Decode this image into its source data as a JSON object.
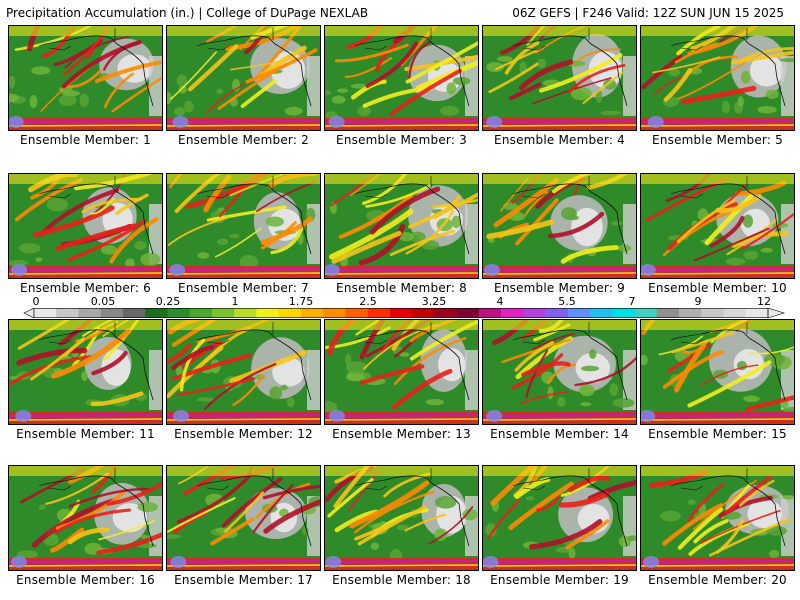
{
  "header": {
    "left": "Precipitation Accumulation (in.) | College of DuPage NEXLAB",
    "right": "06Z GEFS | F246 Valid: 12Z SUN JUN 15 2025"
  },
  "panels": [
    {
      "label": "Ensemble Member: 1"
    },
    {
      "label": "Ensemble Member: 2"
    },
    {
      "label": "Ensemble Member: 3"
    },
    {
      "label": "Ensemble Member: 4"
    },
    {
      "label": "Ensemble Member: 5"
    },
    {
      "label": "Ensemble Member: 6"
    },
    {
      "label": "Ensemble Member: 7"
    },
    {
      "label": "Ensemble Member: 8"
    },
    {
      "label": "Ensemble Member: 9"
    },
    {
      "label": "Ensemble Member: 10"
    },
    {
      "label": "Ensemble Member: 11"
    },
    {
      "label": "Ensemble Member: 12"
    },
    {
      "label": "Ensemble Member: 13"
    },
    {
      "label": "Ensemble Member: 14"
    },
    {
      "label": "Ensemble Member: 15"
    },
    {
      "label": "Ensemble Member: 16"
    },
    {
      "label": "Ensemble Member: 17"
    },
    {
      "label": "Ensemble Member: 18"
    },
    {
      "label": "Ensemble Member: 19"
    },
    {
      "label": "Ensemble Member: 20"
    }
  ],
  "colorbar": {
    "ticks": [
      "0",
      "0.05",
      "0.25",
      "1",
      "1.75",
      "2.5",
      "3.25",
      "4",
      "5.5",
      "7",
      "9",
      "12"
    ],
    "colors": [
      "#e8e8e8",
      "#c8c8c8",
      "#a8a8a8",
      "#888888",
      "#686868",
      "#1e6e1e",
      "#2e8b2e",
      "#4aa82a",
      "#7cc22a",
      "#b8dc28",
      "#f0f020",
      "#ffd700",
      "#ffb000",
      "#ff8c00",
      "#ff6000",
      "#ff3000",
      "#e00000",
      "#c00000",
      "#a00020",
      "#800030",
      "#c01080",
      "#e020c0",
      "#b040e0",
      "#8060f0",
      "#6090ff",
      "#20c0f0",
      "#00e0e0",
      "#40d0c0",
      "#909090",
      "#b0b0b0",
      "#c8c8c8",
      "#d8d8d8",
      "#e8e8e8"
    ]
  }
}
